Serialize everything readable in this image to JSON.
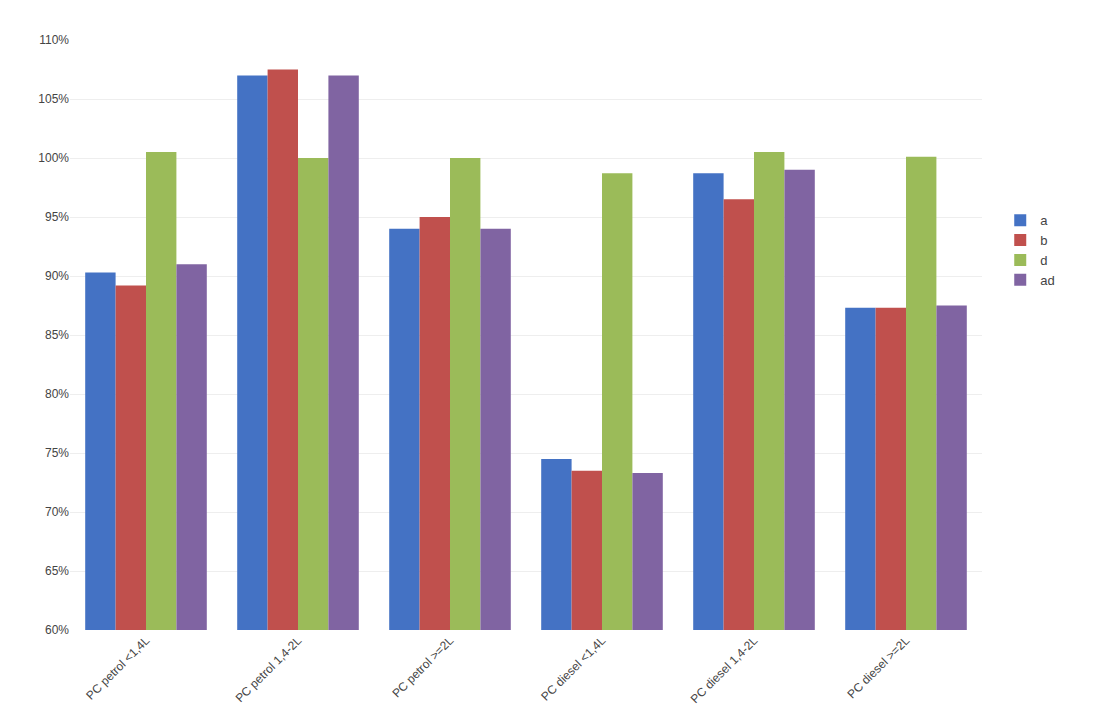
{
  "chart_data": {
    "type": "bar",
    "categories": [
      "PC petrol <1,4L",
      "PC petrol 1,4-2L",
      "PC petrol >=2L",
      "PC diesel <1,4L",
      "PC diesel 1,4-2L",
      "PC diesel >=2L"
    ],
    "series": [
      {
        "name": "a",
        "color": "#4472C4",
        "values": [
          90.3,
          107.0,
          94.0,
          74.5,
          98.7,
          87.3
        ]
      },
      {
        "name": "b",
        "color": "#C0504D",
        "values": [
          89.2,
          107.5,
          95.0,
          73.5,
          96.5,
          87.3
        ]
      },
      {
        "name": "d",
        "color": "#9BBB59",
        "values": [
          100.5,
          100.0,
          100.0,
          98.7,
          100.5,
          100.1
        ]
      },
      {
        "name": "ad",
        "color": "#8064A2",
        "values": [
          91.0,
          107.0,
          94.0,
          73.3,
          99.0,
          87.5
        ]
      }
    ],
    "ylim": [
      60,
      110
    ],
    "yticks": [
      {
        "value": 60,
        "label": "60%"
      },
      {
        "value": 65,
        "label": "65%"
      },
      {
        "value": 70,
        "label": "70%"
      },
      {
        "value": 75,
        "label": "75%"
      },
      {
        "value": 80,
        "label": "80%"
      },
      {
        "value": 85,
        "label": "85%"
      },
      {
        "value": 90,
        "label": "90%"
      },
      {
        "value": 95,
        "label": "95%"
      },
      {
        "value": 100,
        "label": "100%"
      },
      {
        "value": 105,
        "label": "105%"
      },
      {
        "value": 110,
        "label": "110%"
      }
    ],
    "grid": true,
    "legend": "right"
  }
}
